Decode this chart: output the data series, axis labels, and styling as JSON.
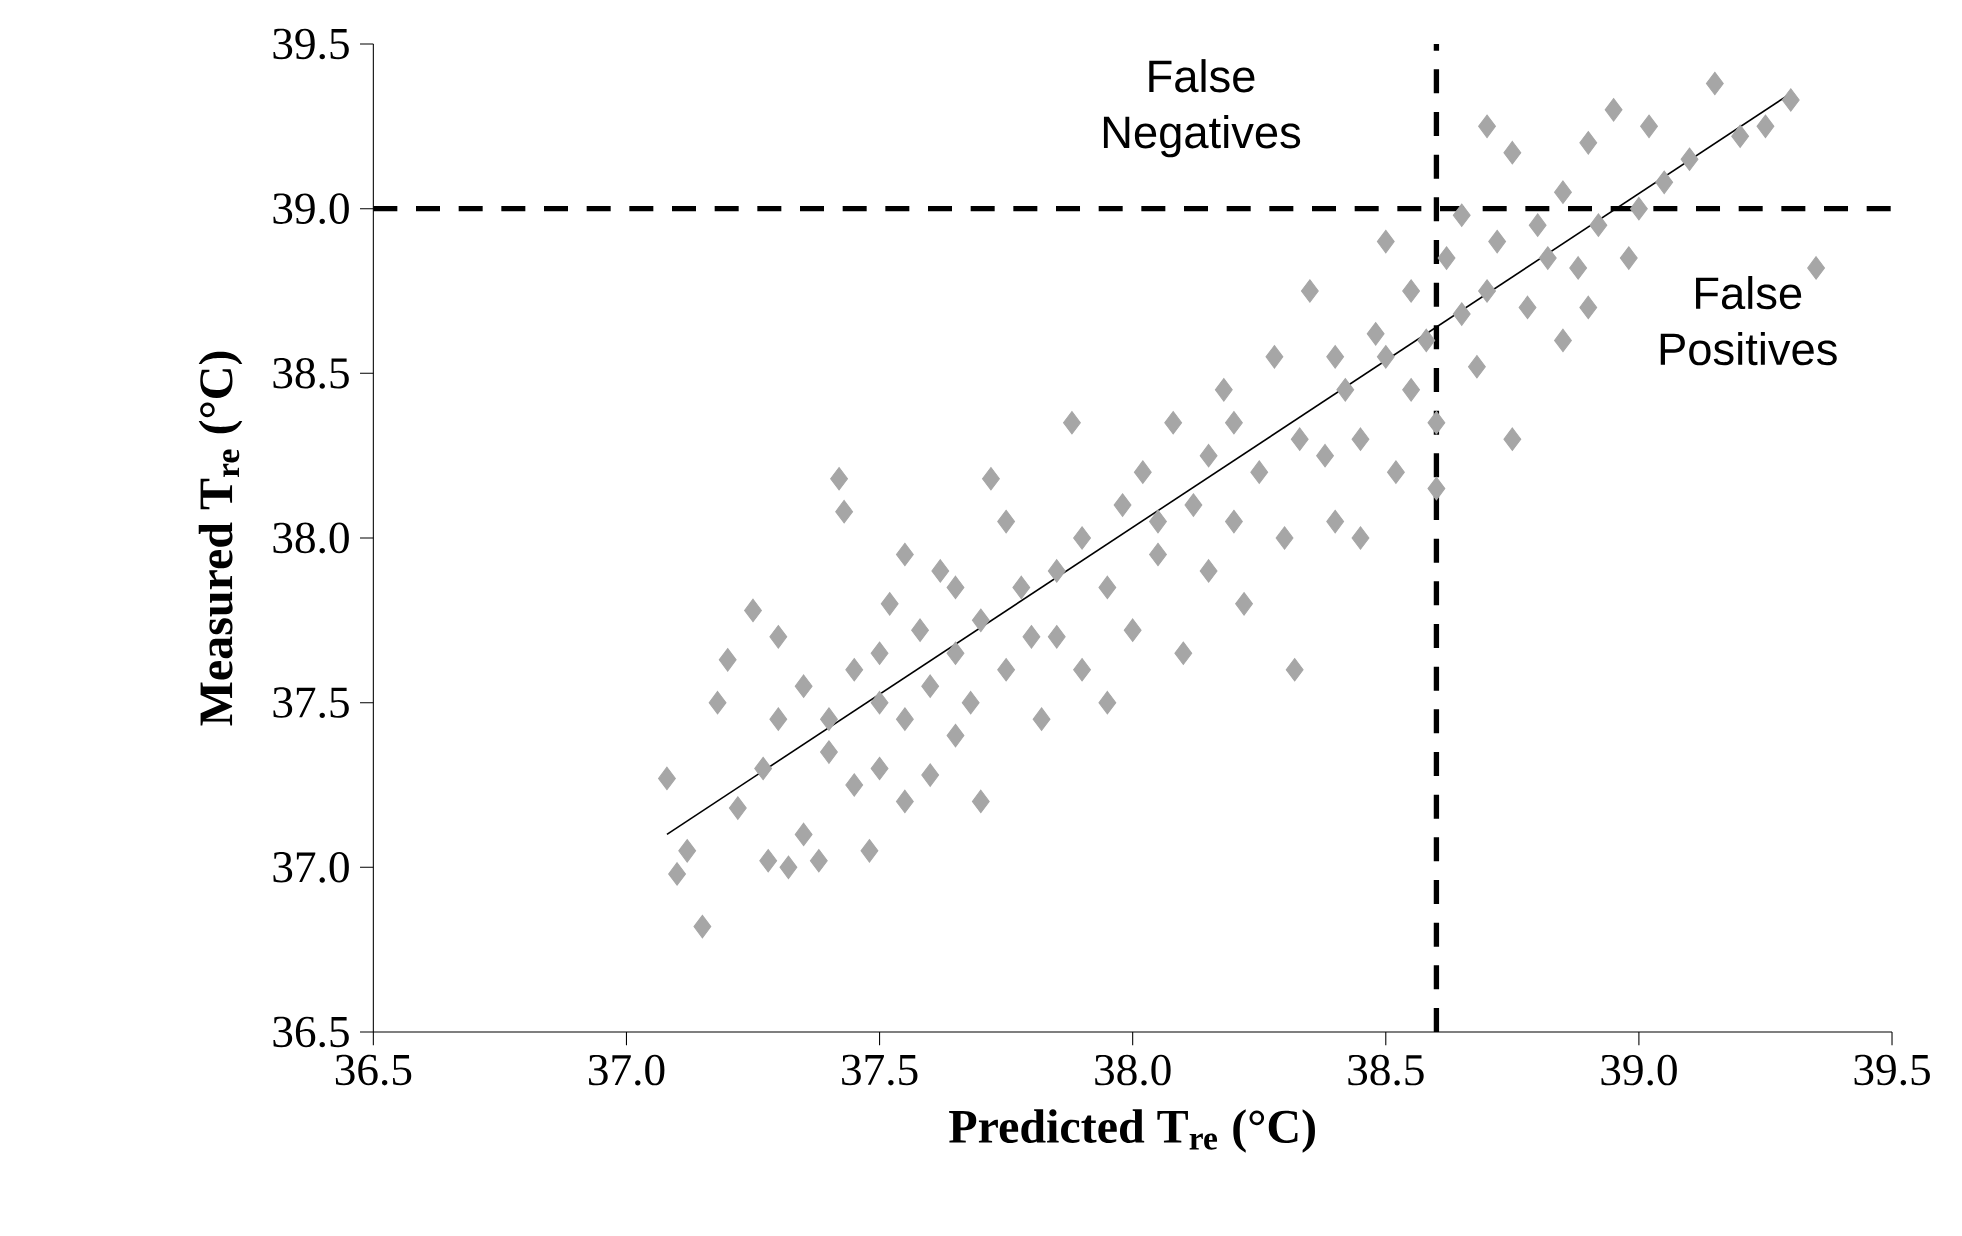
{
  "chart_data": {
    "type": "scatter",
    "xlabel": "**Predicted T$_{re}$ (°C)**",
    "ylabel": "**Measured T$_{re}$ (°C)**",
    "xlim": [
      36.5,
      39.5
    ],
    "ylim": [
      36.5,
      39.5
    ],
    "xticks": [
      36.5,
      {
        "value": 37,
        "label": "37.0"
      },
      37.5,
      {
        "value": 38,
        "label": "38.0"
      },
      38.5,
      {
        "value": 39,
        "label": "39.0"
      },
      39.5
    ],
    "yticks": [
      36.5,
      {
        "value": 37,
        "label": "37.0"
      },
      37.5,
      {
        "value": 38,
        "label": "38.0"
      },
      38.5,
      {
        "value": 39,
        "label": "39.0"
      },
      39.5
    ],
    "grid": false,
    "marker": "diamond",
    "series": [
      {
        "color": "#a6a6a6",
        "x": [
          37.08,
          37.1,
          37.15,
          37.12,
          37.18,
          37.2,
          37.22,
          37.25,
          37.27,
          37.28,
          37.3,
          37.32,
          37.35,
          37.35,
          37.38,
          37.4,
          37.42,
          37.43,
          37.45,
          37.45,
          37.48,
          37.5,
          37.5,
          37.52,
          37.55,
          37.55,
          37.58,
          37.6,
          37.6,
          37.62,
          37.65,
          37.65,
          37.68,
          37.7,
          37.7,
          37.72,
          37.75,
          37.78,
          37.8,
          37.82,
          37.85,
          37.88,
          37.9,
          37.9,
          37.95,
          37.98,
          38.0,
          38.02,
          38.05,
          38.08,
          38.1,
          38.12,
          38.15,
          38.18,
          38.2,
          38.22,
          38.25,
          38.28,
          38.3,
          38.32,
          38.33,
          38.35,
          38.38,
          38.4,
          38.42,
          38.45,
          38.48,
          38.5,
          38.5,
          38.52,
          38.55,
          38.55,
          38.58,
          38.6,
          38.62,
          38.65,
          38.65,
          38.68,
          38.7,
          38.72,
          38.75,
          38.75,
          38.78,
          38.8,
          38.82,
          38.85,
          38.88,
          38.9,
          38.92,
          38.95,
          38.98,
          39.02,
          39.05,
          39.1,
          39.15,
          39.2,
          39.25,
          39.3,
          39.35,
          39.0,
          38.85,
          38.6,
          38.4,
          38.2,
          37.95,
          37.75,
          37.55,
          37.4,
          37.3,
          38.05,
          38.15,
          37.85,
          37.65,
          37.5,
          38.45,
          38.7,
          38.9
        ],
        "values": [
          37.27,
          36.98,
          36.82,
          37.05,
          37.5,
          37.63,
          37.18,
          37.78,
          37.3,
          37.02,
          37.45,
          37.0,
          37.1,
          37.55,
          37.02,
          37.35,
          38.18,
          38.08,
          37.25,
          37.6,
          37.05,
          37.65,
          37.3,
          37.8,
          37.45,
          37.2,
          37.72,
          37.55,
          37.28,
          37.9,
          37.65,
          37.4,
          37.5,
          37.75,
          37.2,
          38.18,
          37.6,
          37.85,
          37.7,
          37.45,
          37.9,
          38.35,
          38.0,
          37.6,
          37.85,
          38.1,
          37.72,
          38.2,
          37.95,
          38.35,
          37.65,
          38.1,
          37.9,
          38.45,
          38.05,
          37.8,
          38.2,
          38.55,
          38.0,
          37.6,
          38.3,
          38.75,
          38.25,
          38.05,
          38.45,
          38.3,
          38.62,
          38.55,
          38.9,
          38.2,
          38.45,
          38.75,
          38.6,
          38.35,
          38.85,
          38.98,
          38.68,
          38.52,
          39.25,
          38.9,
          38.3,
          39.17,
          38.7,
          38.95,
          38.85,
          39.05,
          38.82,
          39.2,
          38.95,
          39.3,
          38.85,
          39.25,
          39.08,
          39.15,
          39.38,
          39.22,
          39.25,
          39.33,
          38.82,
          39.0,
          38.6,
          38.15,
          38.55,
          38.35,
          37.5,
          38.05,
          37.95,
          37.45,
          37.7,
          38.05,
          38.25,
          37.7,
          37.85,
          37.5,
          38.0,
          38.75,
          38.7
        ]
      },
      {
        "type": "line",
        "color": "#000000",
        "marker": "none",
        "line_style": "solid",
        "x": [
          37.08,
          39.3
        ],
        "values": [
          37.1,
          39.35
        ]
      }
    ],
    "ref_lines": [
      {
        "axis": "y",
        "value": 39.0,
        "color": "#000000",
        "line_style": "dashed"
      },
      {
        "axis": "x",
        "value": 38.6,
        "color": "#000000",
        "line_style": "dashed"
      }
    ],
    "annotations": [
      "False Negatives",
      "False Positives"
    ]
  }
}
